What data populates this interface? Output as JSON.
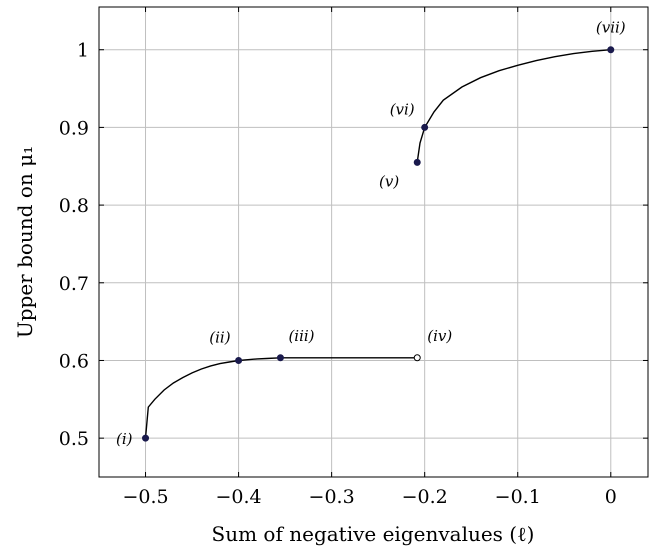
{
  "chart_data": {
    "type": "line",
    "xlabel": "Sum of negative eigenvalues (ℓ)",
    "ylabel": "Upper bound on μ₁",
    "xlim": [
      -0.55,
      0.04
    ],
    "ylim": [
      0.45,
      1.055
    ],
    "x_ticks": [
      -0.5,
      -0.4,
      -0.3,
      -0.2,
      -0.1,
      0
    ],
    "x_tick_labels": [
      "−0.5",
      "−0.4",
      "−0.3",
      "−0.2",
      "−0.1",
      "0"
    ],
    "y_ticks": [
      0.5,
      0.6,
      0.7,
      0.8,
      0.9,
      1
    ],
    "y_tick_labels": [
      "0.5",
      "0.6",
      "0.7",
      "0.8",
      "0.9",
      "1"
    ],
    "grid": true,
    "series": [
      {
        "points": [
          [
            -0.5,
            0.5
          ],
          [
            -0.497,
            0.54
          ],
          [
            -0.49,
            0.55
          ],
          [
            -0.48,
            0.562
          ],
          [
            -0.47,
            0.571
          ],
          [
            -0.46,
            0.578
          ],
          [
            -0.45,
            0.584
          ],
          [
            -0.44,
            0.589
          ],
          [
            -0.43,
            0.593
          ],
          [
            -0.42,
            0.596
          ],
          [
            -0.41,
            0.598
          ],
          [
            -0.4,
            0.6
          ],
          [
            -0.39,
            0.601
          ],
          [
            -0.38,
            0.602
          ],
          [
            -0.37,
            0.6025
          ],
          [
            -0.355,
            0.6035
          ],
          [
            -0.3,
            0.6035
          ],
          [
            -0.25,
            0.6035
          ],
          [
            -0.208,
            0.6035
          ]
        ]
      },
      {
        "points": [
          [
            -0.208,
            0.855
          ],
          [
            -0.205,
            0.88
          ],
          [
            -0.2,
            0.9
          ],
          [
            -0.19,
            0.92
          ],
          [
            -0.18,
            0.935
          ],
          [
            -0.16,
            0.952
          ],
          [
            -0.14,
            0.964
          ],
          [
            -0.12,
            0.973
          ],
          [
            -0.1,
            0.98
          ],
          [
            -0.08,
            0.986
          ],
          [
            -0.06,
            0.991
          ],
          [
            -0.04,
            0.995
          ],
          [
            -0.02,
            0.998
          ],
          [
            0,
            1
          ]
        ]
      }
    ],
    "markers": [
      {
        "label": "(i)",
        "x": -0.5,
        "y": 0.5,
        "filled": true
      },
      {
        "label": "(ii)",
        "x": -0.4,
        "y": 0.6,
        "filled": true
      },
      {
        "label": "(iii)",
        "x": -0.355,
        "y": 0.6035,
        "filled": true
      },
      {
        "label": "(iv)",
        "x": -0.208,
        "y": 0.6035,
        "filled": false
      },
      {
        "label": "(v)",
        "x": -0.208,
        "y": 0.855,
        "filled": true
      },
      {
        "label": "(vi)",
        "x": -0.2,
        "y": 0.9,
        "filled": true
      },
      {
        "label": "(vii)",
        "x": 0,
        "y": 1,
        "filled": true
      }
    ],
    "marker_color": "#1a1a4d"
  }
}
